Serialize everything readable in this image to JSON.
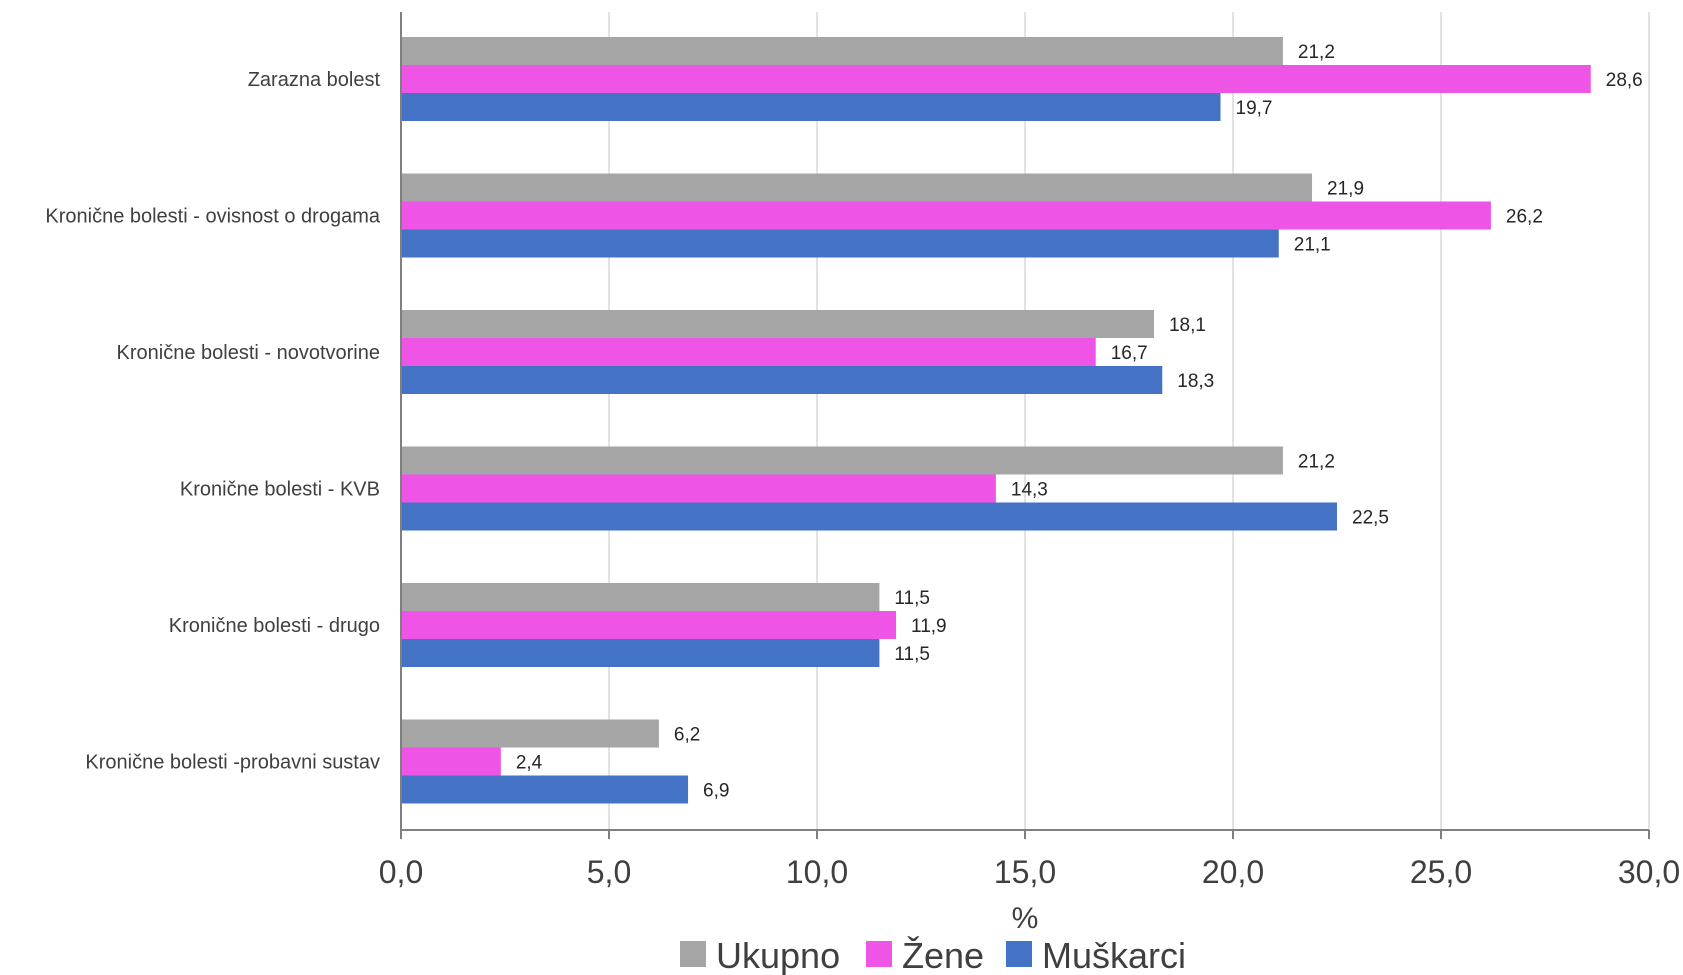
{
  "chart_data": {
    "type": "bar",
    "orientation": "horizontal",
    "categories": [
      "Zarazna bolest",
      "Kronične bolesti - ovisnost o drogama",
      "Kronične bolesti - novotvorine",
      "Kronične bolesti - KVB",
      "Kronične bolesti - drugo",
      "Kronične bolesti -probavni sustav"
    ],
    "series": [
      {
        "name": "Ukupno",
        "color": "#a5a5a5",
        "values": [
          21.2,
          21.9,
          18.1,
          21.2,
          11.5,
          6.2
        ],
        "labels": [
          "21,2",
          "21,9",
          "18,1",
          "21,2",
          "11,5",
          "6,2"
        ]
      },
      {
        "name": "Žene",
        "color": "#ee55e6",
        "values": [
          28.6,
          26.2,
          16.7,
          14.3,
          11.9,
          2.4
        ],
        "labels": [
          "28,6",
          "26,2",
          "16,7",
          "14,3",
          "11,9",
          "2,4"
        ]
      },
      {
        "name": "Muškarci",
        "color": "#4472c4",
        "values": [
          19.7,
          21.1,
          18.3,
          22.5,
          11.5,
          6.9
        ],
        "labels": [
          "19,7",
          "21,1",
          "18,3",
          "22,5",
          "11,5",
          "6,9"
        ]
      }
    ],
    "xlabel": "%",
    "xlim": [
      0,
      30
    ],
    "xticks": [
      0,
      5,
      10,
      15,
      20,
      25,
      30
    ],
    "xtick_labels": [
      "0,0",
      "5,0",
      "10,0",
      "15,0",
      "20,0",
      "25,0",
      "30,0"
    ],
    "grid": "vertical",
    "legend_position": "bottom",
    "data_labels": true
  }
}
